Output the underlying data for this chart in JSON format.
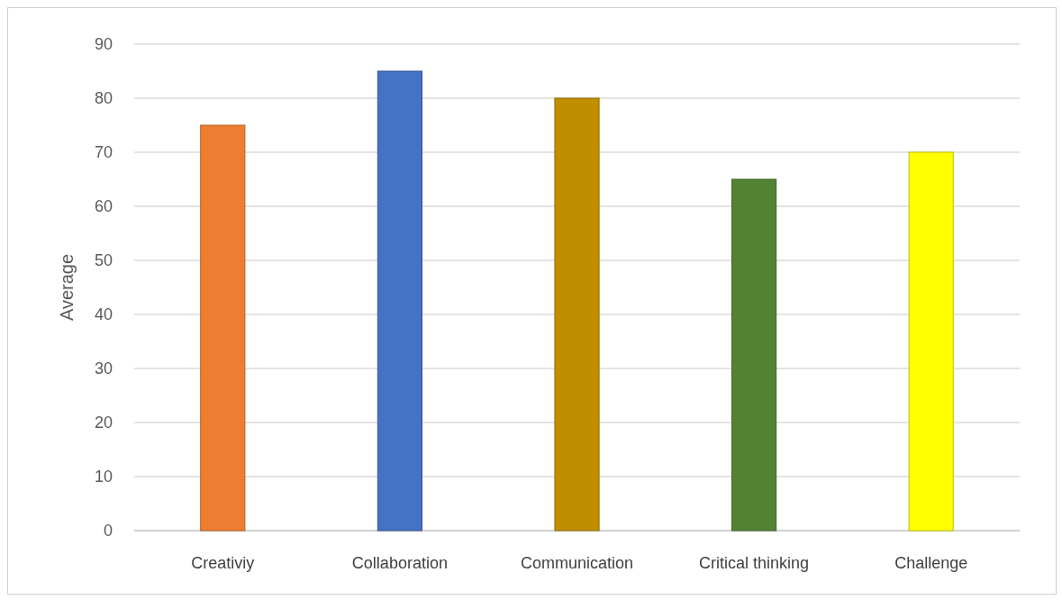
{
  "chart_data": {
    "type": "bar",
    "ylabel": "Average",
    "categories": [
      "Creativiy",
      "Collaboration",
      "Communication",
      "Critical thinking",
      "Challenge"
    ],
    "values": [
      75,
      85,
      80,
      65,
      70
    ],
    "colors": [
      "#ed7d31",
      "#4472c4",
      "#bf8f00",
      "#548235",
      "#ffff00"
    ],
    "ylim": [
      0,
      90
    ],
    "yticks": [
      0,
      10,
      20,
      30,
      40,
      50,
      60,
      70,
      80,
      90
    ],
    "grid": "y"
  }
}
